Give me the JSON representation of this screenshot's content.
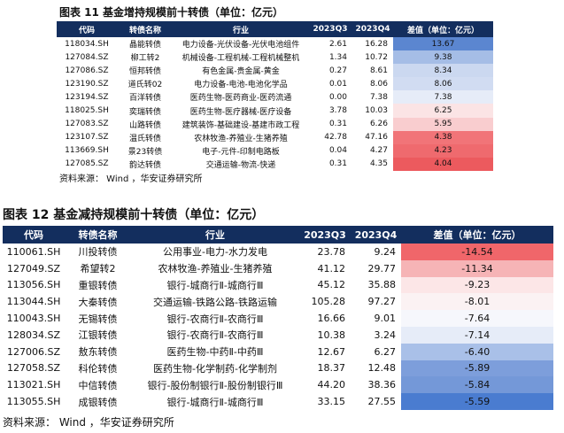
{
  "chart1": {
    "title": "图表 11 基金增持规模前十转债（单位：亿元）",
    "headers": [
      "代码",
      "转债名称",
      "行业",
      "2023Q3",
      "2023Q4",
      "差值（单位：亿元）"
    ],
    "rows": [
      {
        "code": "118034.SH",
        "name": "晶能转债",
        "industry": "电力设备-光伏设备-光伏电池组件",
        "q3": "2.61",
        "q4": "16.28",
        "diff": "13.67",
        "color": "#5b86d0"
      },
      {
        "code": "127084.SZ",
        "name": "柳工转2",
        "industry": "机械设备-工程机械-工程机械整机",
        "q3": "1.34",
        "q4": "10.72",
        "diff": "9.38",
        "color": "#a5bde6"
      },
      {
        "code": "127086.SZ",
        "name": "恒邦转债",
        "industry": "有色金属-贵金属-黄金",
        "q3": "0.27",
        "q4": "8.61",
        "diff": "8.34",
        "color": "#cbd8f0"
      },
      {
        "code": "123190.SZ",
        "name": "道氏转02",
        "industry": "电力设备-电池-电池化学品",
        "q3": "0.01",
        "q4": "8.06",
        "diff": "8.06",
        "color": "#d1dcf2"
      },
      {
        "code": "123194.SZ",
        "name": "百洋转债",
        "industry": "医药生物-医药商业-医药流通",
        "q3": "0.00",
        "q4": "7.38",
        "diff": "7.38",
        "color": "#e6ecf8"
      },
      {
        "code": "118025.SH",
        "name": "奕瑞转债",
        "industry": "医药生物-医疗器械-医疗设备",
        "q3": "3.78",
        "q4": "10.03",
        "diff": "6.25",
        "color": "#fbe4e5"
      },
      {
        "code": "127083.SZ",
        "name": "山路转债",
        "industry": "建筑装饰-基础建设-基建市政工程",
        "q3": "0.31",
        "q4": "6.26",
        "diff": "5.95",
        "color": "#f9cdcf"
      },
      {
        "code": "123107.SZ",
        "name": "温氏转债",
        "industry": "农林牧渔-养殖业-生猪养殖",
        "q3": "42.78",
        "q4": "47.16",
        "diff": "4.38",
        "color": "#f17478"
      },
      {
        "code": "113669.SH",
        "name": "景23转债",
        "industry": "电子-元件-印制电路板",
        "q3": "0.04",
        "q4": "4.27",
        "diff": "4.23",
        "color": "#ef6a6e"
      },
      {
        "code": "127085.SZ",
        "name": "韵达转债",
        "industry": "交通运输-物流-快递",
        "q3": "0.31",
        "q4": "4.35",
        "diff": "4.04",
        "color": "#ec5a5e"
      }
    ],
    "source": "资料来源： Wind ，华安证券研究所"
  },
  "chart2": {
    "title": "图表 12 基金减持规模前十转债（单位：亿元）",
    "headers": [
      "代码",
      "转债名称",
      "行业",
      "2023Q3",
      "2023Q4",
      "差值（单位：亿元）"
    ],
    "rows": [
      {
        "code": "110061.SH",
        "name": "川投转债",
        "industry": "公用事业-电力-水力发电",
        "q3": "23.78",
        "q4": "9.24",
        "diff": "-14.54",
        "color": "#f0666a"
      },
      {
        "code": "127049.SZ",
        "name": "希望转2",
        "industry": "农林牧渔-养殖业-生猪养殖",
        "q3": "41.12",
        "q4": "29.77",
        "diff": "-11.34",
        "color": "#f6b4b6"
      },
      {
        "code": "113056.SH",
        "name": "重银转债",
        "industry": "银行-城商行Ⅱ-城商行Ⅲ",
        "q3": "45.12",
        "q4": "35.88",
        "diff": "-9.23",
        "color": "#fce6e7"
      },
      {
        "code": "113044.SH",
        "name": "大秦转债",
        "industry": "交通运输-铁路公路-铁路运输",
        "q3": "105.28",
        "q4": "97.27",
        "diff": "-8.01",
        "color": "#fbf2f3"
      },
      {
        "code": "110043.SH",
        "name": "无锡转债",
        "industry": "银行-农商行Ⅱ-农商行Ⅲ",
        "q3": "16.66",
        "q4": "9.01",
        "diff": "-7.64",
        "color": "#f6f7fc"
      },
      {
        "code": "128034.SZ",
        "name": "江银转债",
        "industry": "银行-农商行Ⅱ-农商行Ⅲ",
        "q3": "10.38",
        "q4": "3.24",
        "diff": "-7.14",
        "color": "#e6ecf8"
      },
      {
        "code": "127006.SZ",
        "name": "敖东转债",
        "industry": "医药生物-中药Ⅱ-中药Ⅲ",
        "q3": "12.67",
        "q4": "6.27",
        "diff": "-6.40",
        "color": "#a9c0e8"
      },
      {
        "code": "127058.SZ",
        "name": "科伦转债",
        "industry": "医药生物-化学制药-化学制剂",
        "q3": "18.37",
        "q4": "12.48",
        "diff": "-5.89",
        "color": "#7d9edb"
      },
      {
        "code": "113021.SH",
        "name": "中信转债",
        "industry": "银行-股份制银行Ⅱ-股份制银行Ⅲ",
        "q3": "44.20",
        "q4": "38.36",
        "diff": "-5.84",
        "color": "#7498d8"
      },
      {
        "code": "113055.SH",
        "name": "成银转债",
        "industry": "银行-城商行Ⅱ-城商行Ⅲ",
        "q3": "33.15",
        "q4": "27.55",
        "diff": "-5.59",
        "color": "#4a7cd0"
      }
    ],
    "source": "资料来源： Wind ，华安证券研究所"
  }
}
